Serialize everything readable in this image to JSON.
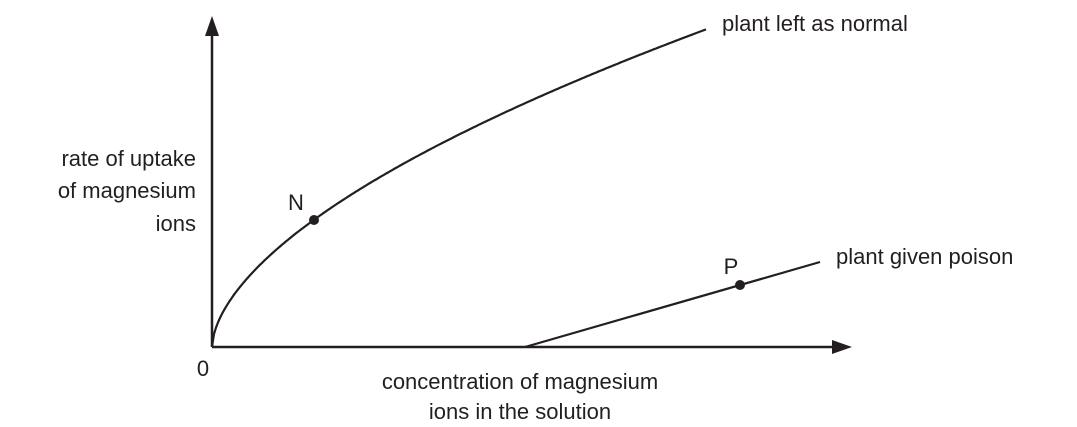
{
  "axes": {
    "y_label": [
      "rate of uptake",
      "of magnesium",
      "ions"
    ],
    "x_label": [
      "concentration of magnesium",
      "ions in the solution"
    ],
    "origin": "0"
  },
  "curves": [
    {
      "label": "plant left as normal",
      "point": "N"
    },
    {
      "label": "plant given poison",
      "point": "P"
    }
  ]
}
